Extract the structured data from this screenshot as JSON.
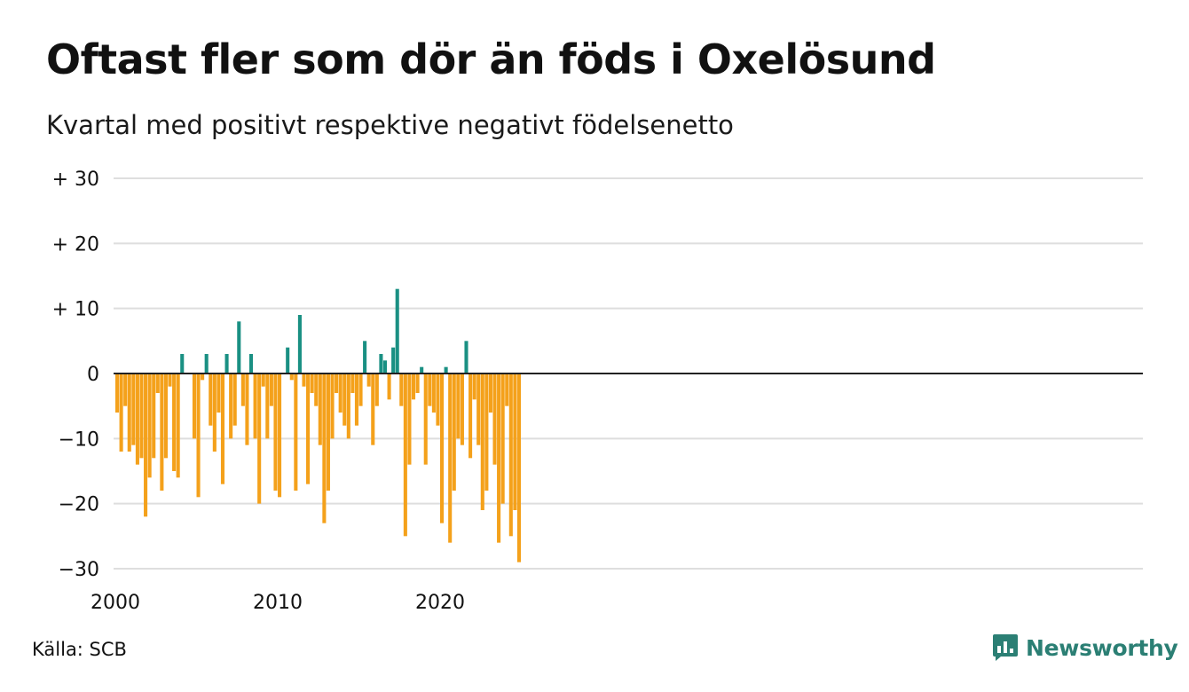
{
  "title": "Oftast fler som dör än föds i Oxelösund",
  "subtitle": "Kvartal med positivt respektive negativt födelsenetto",
  "source": "Källa: SCB",
  "brand": "Newsworthy",
  "colors": {
    "positive": "#1a9083",
    "negative": "#f4a11b",
    "grid": "#dedede",
    "zero": "#222222",
    "brand": "#2b7f74"
  },
  "icons": {
    "brand_logo": "newsworthy-chart-bubble-icon"
  },
  "chart_data": {
    "type": "bar",
    "ylim": [
      -30,
      30
    ],
    "y_ticks": [
      30,
      20,
      10,
      0,
      -10,
      -20,
      -30
    ],
    "y_tick_labels": [
      "+ 30",
      "+ 20",
      "+ 10",
      "0",
      "−10",
      "−20",
      "−30"
    ],
    "x_ticks": [
      "2000",
      "2010",
      "2020"
    ],
    "grid": true,
    "start": "2000 Q1",
    "values": [
      -6,
      -12,
      -5,
      -12,
      -11,
      -14,
      -13,
      -22,
      -16,
      -13,
      -3,
      -18,
      -13,
      -2,
      -15,
      -16,
      3,
      0,
      0,
      -10,
      -19,
      -1,
      3,
      -8,
      -12,
      -6,
      -17,
      3,
      -10,
      -8,
      8,
      -5,
      -11,
      3,
      -10,
      -20,
      -2,
      -10,
      -5,
      -18,
      -19,
      0,
      4,
      -1,
      -18,
      9,
      -2,
      -17,
      -3,
      -5,
      -11,
      -23,
      -18,
      -10,
      -3,
      -6,
      -8,
      -10,
      -3,
      -8,
      -5,
      5,
      -2,
      -11,
      -5,
      3,
      2,
      -4,
      4,
      13,
      -5,
      -25,
      -14,
      -4,
      -3,
      1,
      -14,
      -5,
      -6,
      -8,
      -23,
      1,
      -26,
      -18,
      -10,
      -11,
      5,
      -13,
      -4,
      -11,
      -21,
      -18,
      -6,
      -14,
      -26,
      -20,
      -5,
      -25,
      -21,
      -29
    ]
  }
}
